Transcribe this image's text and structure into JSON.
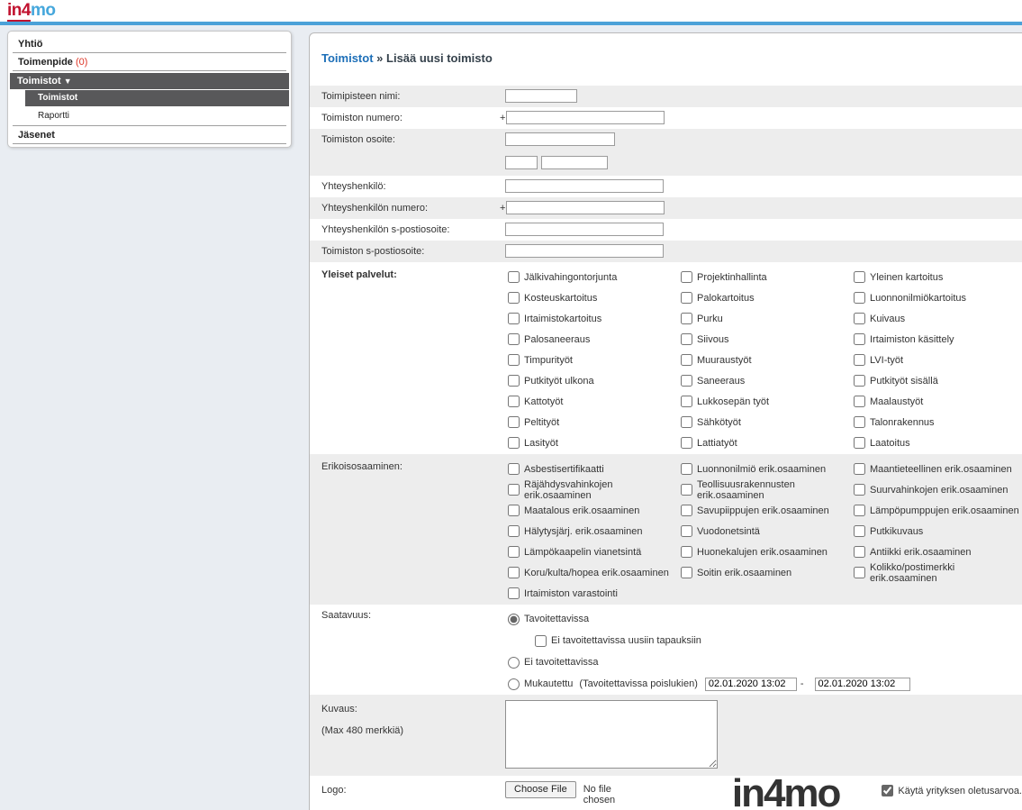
{
  "brand": {
    "logo_red": "in4",
    "logo_blue": "mo",
    "color_red": "#c1122f",
    "color_blue": "#45a7dc"
  },
  "header": {
    "accent_line_color": "#4ba1d8"
  },
  "sidebar": {
    "yhtio": "Yhtiö",
    "toimenpide": "Toimenpide",
    "toimenpide_count": "(0)",
    "count_color": "#dd3526",
    "toimistot_parent": "Toimistot",
    "expand_arrow": "▼",
    "toimistot_sub": "Toimistot",
    "raportti": "Raportti",
    "jasenet": "Jäsenet",
    "active_bg": "#58585a"
  },
  "breadcrumb": {
    "section": "Toimistot",
    "separator": "»",
    "page": "Lisää uusi toimisto"
  },
  "form": {
    "office_name_label": "Toimipisteen nimi:",
    "office_number_label": "Toimiston numero:",
    "phone_prefix": "+",
    "office_address_label": "Toimiston osoite:",
    "contact_name_label": "Yhteyshenkilö:",
    "contact_number_label": "Yhteyshenkilön numero:",
    "contact_email_label": "Yhteyshenkilön s-postiosoite:",
    "office_email_label": "Toimiston s-postiosoite:",
    "services_label": "Yleiset palvelut:",
    "services": [
      "Jälkivahingontorjunta",
      "Projektinhallinta",
      "Yleinen kartoitus",
      "Kosteuskartoitus",
      "Palokartoitus",
      "Luonnonilmiökartoitus",
      "Irtaimistokartoitus",
      "Purku",
      "Kuivaus",
      "Palosaneeraus",
      "Siivous",
      "Irtaimiston käsittely",
      "Timpurityöt",
      "Muuraustyöt",
      "LVI-työt",
      "Putkityöt ulkona",
      "Saneeraus",
      "Putkityöt sisällä",
      "Kattotyöt",
      "Lukkosepän työt",
      "Maalaustyöt",
      "Peltityöt",
      "Sähkötyöt",
      "Talonrakennus",
      "Lasityöt",
      "Lattiatyöt",
      "Laatoitus"
    ],
    "special_label": "Erikoisosaaminen:",
    "special": [
      "Asbestisertifikaatti",
      "Luonnonilmiö erik.osaaminen",
      "Maantieteellinen erik.osaaminen",
      "Räjähdysvahinkojen erik.osaaminen",
      "Teollisuusrakennusten erik.osaaminen",
      "Suurvahinkojen erik.osaaminen",
      "Maatalous erik.osaaminen",
      "Savupiippujen erik.osaaminen",
      "Lämpöpumppujen erik.osaaminen",
      "Hälytysjärj. erik.osaaminen",
      "Vuodonetsintä",
      "Putkikuvaus",
      "Lämpökaapelin vianetsintä",
      "Huonekalujen erik.osaaminen",
      "Antiikki erik.osaaminen",
      "Koru/kulta/hopea erik.osaaminen",
      "Soitin erik.osaaminen",
      "Kolikko/postimerkki erik.osaaminen",
      "Irtaimiston varastointi"
    ],
    "availability_label": "Saatavuus:",
    "availability": {
      "option_reachable": "Tavoitettavissa",
      "option_reachable_checked": true,
      "sub_checkbox": "Ei tavoitettavissa uusiin tapauksiin",
      "option_not_reachable": "Ei tavoitettavissa",
      "option_custom": "Mukautettu",
      "option_custom_note": "(Tavoitettavissa poislukien)",
      "date_from": "02.01.2020 13:02",
      "range_separator": "-",
      "date_to": "02.01.2020 13:02"
    },
    "description_label": "Kuvaus:",
    "description_hint": "(Max 480 merkkiä)",
    "logo_label": "Logo:",
    "file_button": "Choose File",
    "file_status": "No file chosen",
    "use_default_label": "Käytä yrityksen oletusarvoa.",
    "use_default_checked": true
  }
}
